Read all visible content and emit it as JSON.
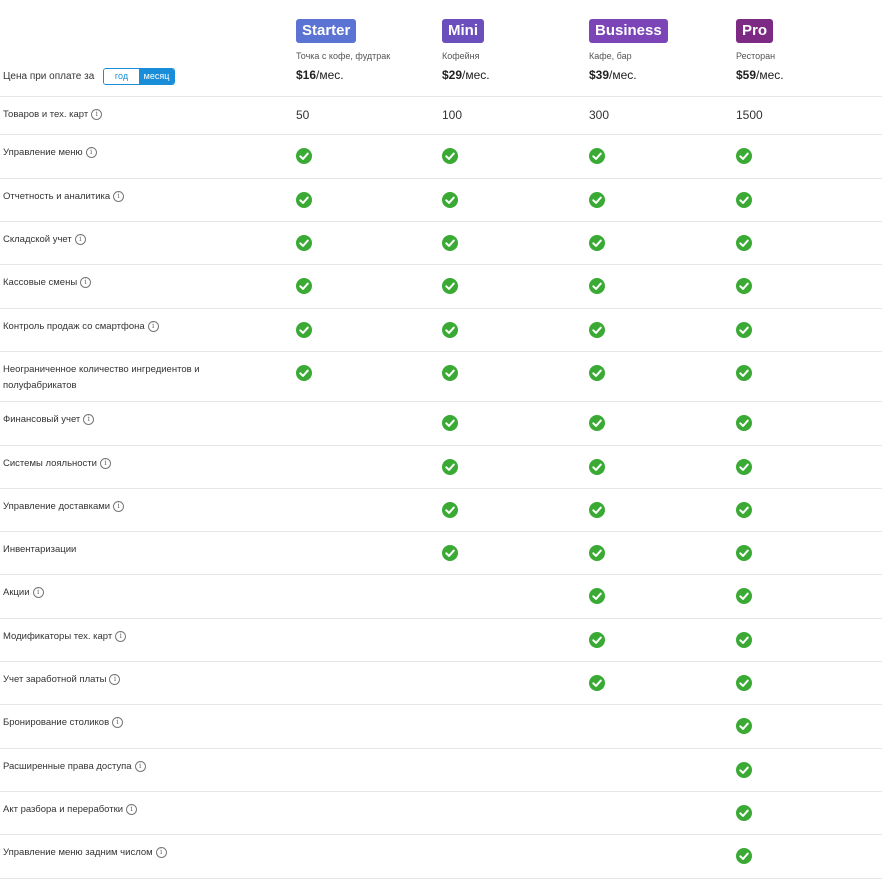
{
  "header": {
    "price_label": "Цена при оплате за",
    "toggle": {
      "year": "год",
      "month": "месяц",
      "selected": "месяц"
    }
  },
  "colors": {
    "starter": "#5b73d2",
    "mini": "#6a4fbd",
    "business": "#7b45b8",
    "pro": "#7d2a85",
    "check": "#3aaa35",
    "toggle": "#1a8dd8"
  },
  "plans": [
    {
      "name": "Starter",
      "subtitle": "Точка с кофе, фудтрак",
      "price": "$16",
      "period": "/мес."
    },
    {
      "name": "Mini",
      "subtitle": "Кофейня",
      "price": "$29",
      "period": "/мес."
    },
    {
      "name": "Business",
      "subtitle": "Кафе, бар",
      "price": "$39",
      "period": "/мес."
    },
    {
      "name": "Pro",
      "subtitle": "Ресторан",
      "price": "$59",
      "period": "/мес."
    }
  ],
  "goods_row": {
    "label": "Товаров и тех. карт",
    "values": [
      "50",
      "100",
      "300",
      "1500"
    ]
  },
  "features": [
    {
      "label": "Управление меню",
      "info": true,
      "checks": [
        true,
        true,
        true,
        true
      ]
    },
    {
      "label": "Отчетность и аналитика",
      "info": true,
      "checks": [
        true,
        true,
        true,
        true
      ]
    },
    {
      "label": "Складской учет",
      "info": true,
      "checks": [
        true,
        true,
        true,
        true
      ]
    },
    {
      "label": "Кассовые смены",
      "info": true,
      "checks": [
        true,
        true,
        true,
        true
      ]
    },
    {
      "label": "Контроль продаж со смартфона",
      "info": true,
      "checks": [
        true,
        true,
        true,
        true
      ]
    },
    {
      "label": "Неограниченное количество ингредиентов и полуфабрикатов",
      "info": false,
      "checks": [
        true,
        true,
        true,
        true
      ]
    },
    {
      "label": "Финансовый учет",
      "info": true,
      "checks": [
        false,
        true,
        true,
        true
      ]
    },
    {
      "label": "Системы лояльности",
      "info": true,
      "checks": [
        false,
        true,
        true,
        true
      ]
    },
    {
      "label": "Управление доставками",
      "info": true,
      "checks": [
        false,
        true,
        true,
        true
      ]
    },
    {
      "label": "Инвентаризации",
      "info": false,
      "checks": [
        false,
        true,
        true,
        true
      ]
    },
    {
      "label": "Акции",
      "info": true,
      "checks": [
        false,
        false,
        true,
        true
      ]
    },
    {
      "label": "Модификаторы тех. карт",
      "info": true,
      "checks": [
        false,
        false,
        true,
        true
      ]
    },
    {
      "label": "Учет заработной платы",
      "info": true,
      "checks": [
        false,
        false,
        true,
        true
      ]
    },
    {
      "label": "Бронирование столиков",
      "info": true,
      "checks": [
        false,
        false,
        false,
        true
      ]
    },
    {
      "label": "Расширенные права доступа",
      "info": true,
      "checks": [
        false,
        false,
        false,
        true
      ]
    },
    {
      "label": "Акт разбора и переработки",
      "info": true,
      "checks": [
        false,
        false,
        false,
        true
      ]
    },
    {
      "label": "Управление меню задним числом",
      "info": true,
      "checks": [
        false,
        false,
        false,
        true
      ]
    }
  ]
}
